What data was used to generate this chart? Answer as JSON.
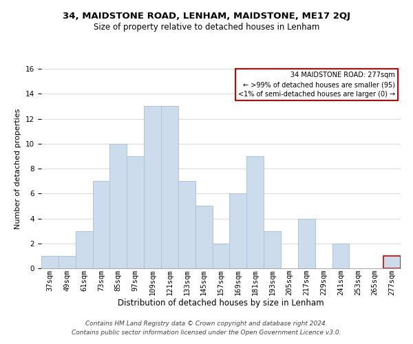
{
  "title": "34, MAIDSTONE ROAD, LENHAM, MAIDSTONE, ME17 2QJ",
  "subtitle": "Size of property relative to detached houses in Lenham",
  "xlabel": "Distribution of detached houses by size in Lenham",
  "ylabel": "Number of detached properties",
  "footer_line1": "Contains HM Land Registry data © Crown copyright and database right 2024.",
  "footer_line2": "Contains public sector information licensed under the Open Government Licence v3.0.",
  "bin_labels": [
    "37sqm",
    "49sqm",
    "61sqm",
    "73sqm",
    "85sqm",
    "97sqm",
    "109sqm",
    "121sqm",
    "133sqm",
    "145sqm",
    "157sqm",
    "169sqm",
    "181sqm",
    "193sqm",
    "205sqm",
    "217sqm",
    "229sqm",
    "241sqm",
    "253sqm",
    "265sqm",
    "277sqm"
  ],
  "bar_values": [
    1,
    1,
    3,
    7,
    10,
    9,
    13,
    13,
    7,
    5,
    2,
    6,
    9,
    3,
    0,
    4,
    0,
    2,
    0,
    0,
    1
  ],
  "bar_color": "#cddcec",
  "bar_edgecolor": "#aec4d8",
  "highlight_bar_index": 20,
  "highlight_bar_edgecolor": "#cc0000",
  "ylim": [
    0,
    16
  ],
  "yticks": [
    0,
    2,
    4,
    6,
    8,
    10,
    12,
    14,
    16
  ],
  "annotation_title": "34 MAIDSTONE ROAD: 277sqm",
  "annotation_line1": "← >99% of detached houses are smaller (95)",
  "annotation_line2": "<1% of semi-detached houses are larger (0) →",
  "annotation_box_color": "#ffffff",
  "annotation_box_edgecolor": "#cc0000",
  "grid_color": "#d8d8d8",
  "background_color": "#ffffff",
  "title_fontsize": 9.5,
  "subtitle_fontsize": 8.5,
  "tick_fontsize": 7.5,
  "ylabel_fontsize": 8,
  "xlabel_fontsize": 8.5,
  "footer_fontsize": 6.5
}
